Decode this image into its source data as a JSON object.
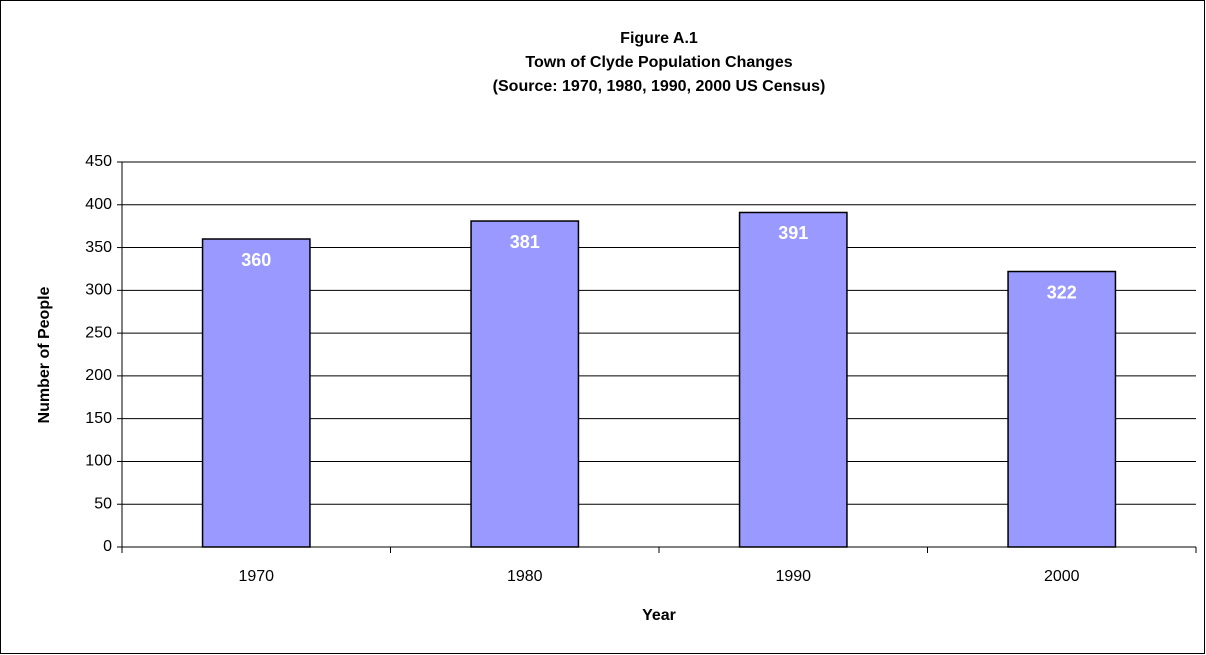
{
  "chart_data": {
    "type": "bar",
    "title": [
      "Figure A.1",
      "Town of Clyde Population Changes",
      "(Source:  1970, 1980, 1990, 2000 US Census)"
    ],
    "x_label": "Year",
    "y_label": "Number of People",
    "categories": [
      "1970",
      "1980",
      "1990",
      "2000"
    ],
    "values": [
      360,
      381,
      391,
      322
    ],
    "color": "#9999ff",
    "ylim": [
      0,
      450
    ],
    "yticks": [
      0,
      50,
      100,
      150,
      200,
      250,
      300,
      350,
      400,
      450
    ],
    "grid": true
  }
}
